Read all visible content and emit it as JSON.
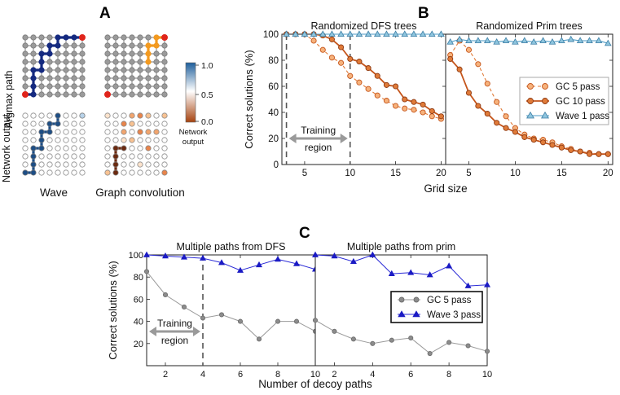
{
  "panels": {
    "a_label": "A",
    "b_label": "B",
    "c_label": "C"
  },
  "panel_a": {
    "row_argmax": "Argmax path",
    "row_output": "Network output",
    "col_wave": "Wave",
    "col_gc": "Graph convolution",
    "colorbar": {
      "ticks": [
        "1.0",
        "0.5",
        "0.0"
      ],
      "title_line1": "Network",
      "title_line2": "output",
      "top_color": "#1f5f9c",
      "bottom_color": "#a6430f"
    },
    "colors": {
      "node": "#9a9a9a",
      "endpoint": "#e0241b",
      "wave_path": "#152a80",
      "gc_path": "#f39a20",
      "wave_output": "#1d4e86",
      "gc_output": "#6b2a10"
    }
  },
  "chart_data": [
    {
      "id": "dfs",
      "type": "line",
      "title": "Randomized DFS trees",
      "ylabel": "Correct solutions  (%)",
      "xlim": [
        2.5,
        20.5
      ],
      "ylim": [
        0,
        100
      ],
      "xticks": [
        5,
        10,
        15,
        20
      ],
      "yticks": [
        0,
        20,
        40,
        60,
        80,
        100
      ],
      "annotation": {
        "line1": "Training",
        "line2": "region",
        "x_range": [
          3,
          10
        ]
      },
      "series": [
        {
          "name": "GC 5 pass",
          "x": [
            3,
            4,
            5,
            6,
            7,
            8,
            9,
            10,
            11,
            12,
            13,
            14,
            15,
            16,
            17,
            18,
            19,
            20
          ],
          "values": [
            100,
            100,
            100,
            95,
            88,
            82,
            78,
            68,
            63,
            58,
            53,
            49,
            45,
            43,
            42,
            40,
            37,
            35
          ]
        },
        {
          "name": "GC 10 pass",
          "x": [
            3,
            4,
            5,
            6,
            7,
            8,
            9,
            10,
            11,
            12,
            13,
            14,
            15,
            16,
            17,
            18,
            19,
            20
          ],
          "values": [
            100,
            100,
            100,
            100,
            99,
            96,
            90,
            81,
            79,
            74,
            68,
            61,
            60,
            50,
            48,
            46,
            41,
            37
          ]
        },
        {
          "name": "Wave 1 pass",
          "x": [
            3,
            4,
            5,
            6,
            7,
            8,
            9,
            10,
            11,
            12,
            13,
            14,
            15,
            16,
            17,
            18,
            19,
            20
          ],
          "values": [
            100,
            100,
            100,
            100,
            100,
            100,
            100,
            100,
            100,
            100,
            100,
            100,
            100,
            100,
            100,
            100,
            100,
            100
          ]
        }
      ]
    },
    {
      "id": "prim",
      "type": "line",
      "title": "Randomized Prim trees",
      "xlabel": "Grid size",
      "xlim": [
        2.5,
        20.5
      ],
      "ylim": [
        0,
        100
      ],
      "xticks": [
        5,
        10,
        15,
        20
      ],
      "series": [
        {
          "name": "GC 5 pass",
          "x": [
            3,
            4,
            5,
            6,
            7,
            8,
            9,
            10,
            11,
            12,
            13,
            14,
            15,
            16,
            17,
            18,
            19,
            20
          ],
          "values": [
            84,
            95,
            88,
            77,
            62,
            48,
            37,
            28,
            23,
            20,
            19,
            17,
            14,
            12,
            10,
            9,
            8,
            8
          ]
        },
        {
          "name": "GC 10 pass",
          "x": [
            3,
            4,
            5,
            6,
            7,
            8,
            9,
            10,
            11,
            12,
            13,
            14,
            15,
            16,
            17,
            18,
            19,
            20
          ],
          "values": [
            81,
            73,
            55,
            45,
            39,
            32,
            28,
            25,
            21,
            19,
            17,
            15,
            13,
            11,
            10,
            8,
            8,
            8
          ]
        },
        {
          "name": "Wave 1 pass",
          "x": [
            3,
            4,
            5,
            6,
            7,
            8,
            9,
            10,
            11,
            12,
            13,
            14,
            15,
            16,
            17,
            18,
            19,
            20
          ],
          "values": [
            94,
            96,
            95,
            95,
            95,
            94,
            95,
            94,
            95,
            94,
            95,
            94,
            95,
            96,
            95,
            95,
            95,
            93
          ]
        }
      ],
      "legend": [
        "GC 5 pass",
        "GC 10 pass",
        "Wave 1 pass"
      ]
    },
    {
      "id": "decoy_dfs",
      "type": "line",
      "title": "Multiple paths from DFS",
      "ylabel": "Correct solutions  (%)",
      "xlim": [
        1,
        10
      ],
      "ylim": [
        0,
        100
      ],
      "xticks": [
        2,
        4,
        6,
        8,
        10
      ],
      "yticks": [
        20,
        40,
        60,
        80,
        100
      ],
      "annotation": {
        "line1": "Training",
        "line2": "region",
        "x_range": [
          1,
          4
        ]
      },
      "series": [
        {
          "name": "GC 5 pass",
          "x": [
            1,
            2,
            3,
            4,
            5,
            6,
            7,
            8,
            9,
            10
          ],
          "values": [
            85,
            64,
            53,
            43,
            46,
            40,
            24,
            40,
            40,
            31
          ]
        },
        {
          "name": "Wave 3 pass",
          "x": [
            1,
            2,
            3,
            4,
            5,
            6,
            7,
            8,
            9,
            10
          ],
          "values": [
            100,
            99,
            98,
            97,
            93,
            86,
            91,
            96,
            92,
            87
          ]
        }
      ]
    },
    {
      "id": "decoy_prim",
      "type": "line",
      "title": "Multiple paths from prim",
      "xlabel": "Number of decoy paths",
      "xlim": [
        1,
        10
      ],
      "ylim": [
        0,
        100
      ],
      "xticks": [
        2,
        4,
        6,
        8,
        10
      ],
      "series": [
        {
          "name": "GC 5 pass",
          "x": [
            1,
            2,
            3,
            4,
            5,
            6,
            7,
            8,
            9,
            10
          ],
          "values": [
            41,
            31,
            24,
            20,
            23,
            25,
            11,
            21,
            18,
            13
          ]
        },
        {
          "name": "Wave 3 pass",
          "x": [
            1,
            2,
            3,
            4,
            5,
            6,
            7,
            8,
            9,
            10
          ],
          "values": [
            100,
            99,
            94,
            100,
            83,
            84,
            82,
            90,
            72,
            73
          ]
        }
      ],
      "legend": [
        "GC 5 pass",
        "Wave 3 pass"
      ]
    }
  ],
  "colors": {
    "orange_fill": "#f6b27c",
    "orange_dark": "#c5551b",
    "orange_line": "#e07b39",
    "wave_fill": "#8ec5de",
    "wave_line": "#4a9ac4",
    "blue_line": "#2b2bd6",
    "gray_line": "#9a9a9a",
    "gray_fill": "#8c8c8c",
    "dash": "#555555",
    "arrow": "#9a9a9a"
  }
}
